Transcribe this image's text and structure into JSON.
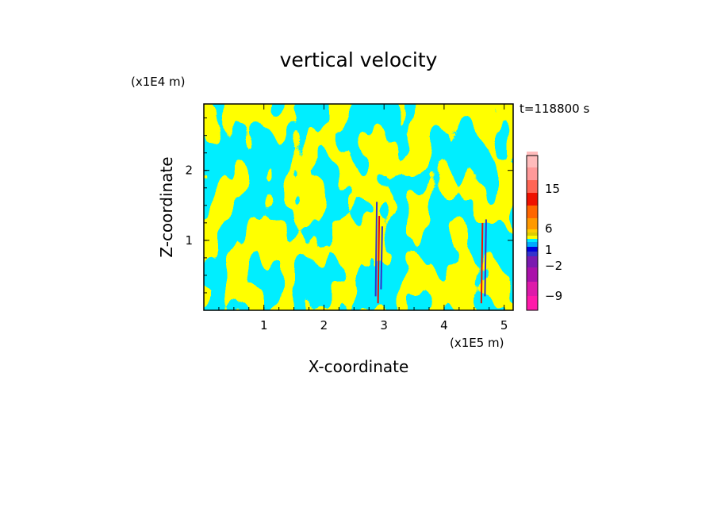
{
  "chart_data": {
    "type": "heatmap",
    "title": "vertical velocity",
    "xlabel": "X-coordinate",
    "ylabel": "Z-coordinate",
    "x_unit": "(x1E5 m)",
    "y_unit": "(x1E4 m)",
    "time_label": "t=118800 s",
    "xlim": [
      0,
      5.15
    ],
    "ylim": [
      0,
      2.95
    ],
    "x_ticks": [
      "1",
      "2",
      "3",
      "4",
      "5"
    ],
    "y_ticks": [
      "1",
      "2"
    ],
    "colorbar_tick_labels": [
      "15",
      "6",
      "1",
      "−2",
      "−9"
    ],
    "colorbar_levels": [
      {
        "color": "#ff1aaa"
      },
      {
        "color": "#dd1aaa"
      },
      {
        "color": "#aa11aa"
      },
      {
        "color": "#7a1ab0"
      },
      {
        "color": "#3333cc"
      },
      {
        "color": "#0000dd"
      },
      {
        "color": "#00aaff"
      },
      {
        "color": "#00eeff"
      },
      {
        "color": "#ffff00"
      },
      {
        "color": "#ddcc00"
      },
      {
        "color": "#ffcc00"
      },
      {
        "color": "#ff9900"
      },
      {
        "color": "#ff6600"
      },
      {
        "color": "#ee1100"
      },
      {
        "color": "#ff6655"
      },
      {
        "color": "#ff9999"
      },
      {
        "color": "#ffbbbb"
      },
      {
        "color": "#ffeeee"
      }
    ],
    "field_colors": {
      "positive": "#ffff00",
      "negative": "#00eeff",
      "strong_up": "#ee1100",
      "strong_down": "#3333cc"
    }
  }
}
